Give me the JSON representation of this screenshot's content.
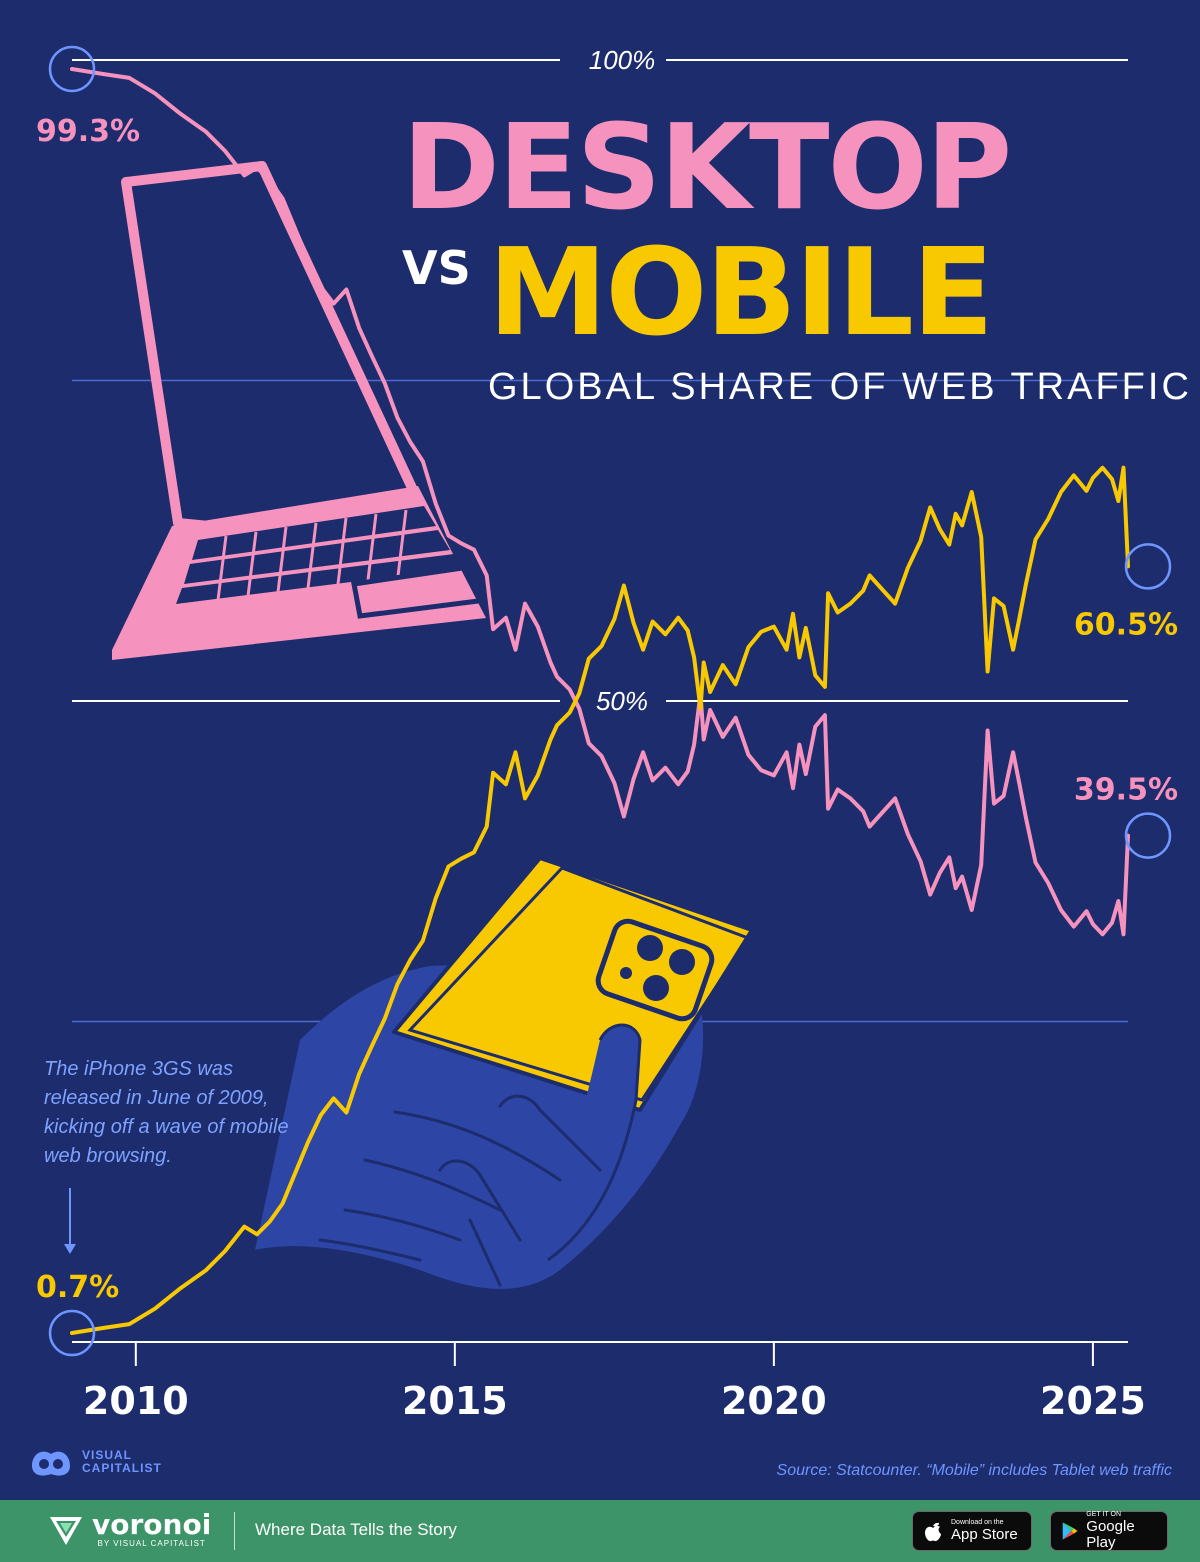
{
  "header": {
    "title_line1": "DESKTOP",
    "title_vs": "VS",
    "title_line2": "MOBILE",
    "subtitle": "GLOBAL SHARE OF WEB TRAFFIC"
  },
  "chart_data": {
    "type": "line",
    "title": "DESKTOP VS MOBILE",
    "subtitle": "GLOBAL SHARE OF WEB TRAFFIC",
    "xlabel": "",
    "ylabel": "",
    "xlim": [
      2009.0,
      2025.55
    ],
    "ylim": [
      0,
      100
    ],
    "x_ticks": [
      "2010",
      "2015",
      "2020",
      "2025"
    ],
    "y_ticks": [
      {
        "value": 100,
        "label": "100%"
      },
      {
        "value": 75,
        "label": ""
      },
      {
        "value": 50,
        "label": "50%"
      },
      {
        "value": 25,
        "label": ""
      },
      {
        "value": 0,
        "label": ""
      }
    ],
    "grid": true,
    "legend": "none",
    "series": [
      {
        "name": "DESKTOP",
        "color": "#f592bd",
        "start_label": "99.3%",
        "end_label": "39.5%",
        "points": [
          [
            2009.0,
            99.3
          ],
          [
            2009.5,
            98.9
          ],
          [
            2009.9,
            98.6
          ],
          [
            2010.3,
            97.4
          ],
          [
            2010.7,
            95.8
          ],
          [
            2011.1,
            94.4
          ],
          [
            2011.4,
            92.9
          ],
          [
            2011.7,
            91.0
          ],
          [
            2011.9,
            91.6
          ],
          [
            2012.1,
            90.6
          ],
          [
            2012.3,
            89.2
          ],
          [
            2012.5,
            86.8
          ],
          [
            2012.7,
            84.4
          ],
          [
            2012.9,
            82.3
          ],
          [
            2013.1,
            81.0
          ],
          [
            2013.3,
            82.1
          ],
          [
            2013.5,
            79.1
          ],
          [
            2013.7,
            76.9
          ],
          [
            2013.9,
            74.8
          ],
          [
            2014.1,
            72.1
          ],
          [
            2014.3,
            70.2
          ],
          [
            2014.5,
            68.7
          ],
          [
            2014.7,
            65.4
          ],
          [
            2014.9,
            62.9
          ],
          [
            2015.1,
            62.3
          ],
          [
            2015.3,
            61.8
          ],
          [
            2015.5,
            59.8
          ],
          [
            2015.6,
            55.6
          ],
          [
            2015.8,
            56.5
          ],
          [
            2015.95,
            54.0
          ],
          [
            2016.1,
            57.6
          ],
          [
            2016.3,
            55.8
          ],
          [
            2016.5,
            53.0
          ],
          [
            2016.6,
            51.9
          ],
          [
            2016.8,
            50.9
          ],
          [
            2016.95,
            49.4
          ],
          [
            2017.1,
            46.7
          ],
          [
            2017.3,
            45.7
          ],
          [
            2017.5,
            43.6
          ],
          [
            2017.65,
            41.0
          ],
          [
            2017.8,
            43.9
          ],
          [
            2017.95,
            46.0
          ],
          [
            2018.1,
            43.8
          ],
          [
            2018.3,
            44.8
          ],
          [
            2018.5,
            43.5
          ],
          [
            2018.65,
            44.5
          ],
          [
            2018.75,
            46.6
          ],
          [
            2018.85,
            50.6
          ],
          [
            2018.9,
            47.0
          ],
          [
            2019.0,
            49.3
          ],
          [
            2019.2,
            47.2
          ],
          [
            2019.4,
            48.7
          ],
          [
            2019.6,
            45.8
          ],
          [
            2019.8,
            44.6
          ],
          [
            2020.0,
            44.2
          ],
          [
            2020.2,
            46.0
          ],
          [
            2020.3,
            43.2
          ],
          [
            2020.4,
            46.6
          ],
          [
            2020.5,
            44.3
          ],
          [
            2020.65,
            48.0
          ],
          [
            2020.8,
            48.9
          ],
          [
            2020.85,
            41.6
          ],
          [
            2021.0,
            43.1
          ],
          [
            2021.2,
            42.4
          ],
          [
            2021.4,
            41.4
          ],
          [
            2021.5,
            40.2
          ],
          [
            2021.7,
            41.3
          ],
          [
            2021.9,
            42.4
          ],
          [
            2022.1,
            39.6
          ],
          [
            2022.3,
            37.5
          ],
          [
            2022.45,
            34.9
          ],
          [
            2022.6,
            36.6
          ],
          [
            2022.75,
            37.8
          ],
          [
            2022.85,
            35.4
          ],
          [
            2022.95,
            36.3
          ],
          [
            2023.1,
            33.7
          ],
          [
            2023.25,
            37.2
          ],
          [
            2023.35,
            47.7
          ],
          [
            2023.45,
            42.0
          ],
          [
            2023.6,
            42.6
          ],
          [
            2023.75,
            46.0
          ],
          [
            2023.85,
            43.5
          ],
          [
            2023.95,
            40.9
          ],
          [
            2024.1,
            37.4
          ],
          [
            2024.3,
            35.8
          ],
          [
            2024.5,
            33.7
          ],
          [
            2024.7,
            32.4
          ],
          [
            2024.9,
            33.6
          ],
          [
            2025.0,
            32.6
          ],
          [
            2025.15,
            31.8
          ],
          [
            2025.3,
            32.7
          ],
          [
            2025.4,
            34.4
          ],
          [
            2025.48,
            31.8
          ],
          [
            2025.55,
            39.5
          ]
        ]
      },
      {
        "name": "MOBILE",
        "color": "#f8c800",
        "start_label": "0.7%",
        "end_label": "60.5%",
        "points": [
          [
            2009.0,
            0.7
          ],
          [
            2009.5,
            1.1
          ],
          [
            2009.9,
            1.4
          ],
          [
            2010.3,
            2.6
          ],
          [
            2010.7,
            4.2
          ],
          [
            2011.1,
            5.6
          ],
          [
            2011.4,
            7.1
          ],
          [
            2011.7,
            9.0
          ],
          [
            2011.9,
            8.4
          ],
          [
            2012.1,
            9.4
          ],
          [
            2012.3,
            10.8
          ],
          [
            2012.5,
            13.2
          ],
          [
            2012.7,
            15.6
          ],
          [
            2012.9,
            17.7
          ],
          [
            2013.1,
            19.0
          ],
          [
            2013.3,
            17.9
          ],
          [
            2013.5,
            20.9
          ],
          [
            2013.7,
            23.1
          ],
          [
            2013.9,
            25.2
          ],
          [
            2014.1,
            27.9
          ],
          [
            2014.3,
            29.8
          ],
          [
            2014.5,
            31.3
          ],
          [
            2014.7,
            34.6
          ],
          [
            2014.9,
            37.1
          ],
          [
            2015.1,
            37.7
          ],
          [
            2015.3,
            38.2
          ],
          [
            2015.5,
            40.2
          ],
          [
            2015.6,
            44.4
          ],
          [
            2015.8,
            43.5
          ],
          [
            2015.95,
            46.0
          ],
          [
            2016.1,
            42.4
          ],
          [
            2016.3,
            44.2
          ],
          [
            2016.5,
            47.0
          ],
          [
            2016.6,
            48.1
          ],
          [
            2016.8,
            49.1
          ],
          [
            2016.95,
            50.6
          ],
          [
            2017.1,
            53.3
          ],
          [
            2017.3,
            54.3
          ],
          [
            2017.5,
            56.4
          ],
          [
            2017.65,
            59.0
          ],
          [
            2017.8,
            56.1
          ],
          [
            2017.95,
            54.0
          ],
          [
            2018.1,
            56.2
          ],
          [
            2018.3,
            55.2
          ],
          [
            2018.5,
            56.5
          ],
          [
            2018.65,
            55.5
          ],
          [
            2018.75,
            53.4
          ],
          [
            2018.85,
            49.4
          ],
          [
            2018.9,
            53.0
          ],
          [
            2019.0,
            50.7
          ],
          [
            2019.2,
            52.8
          ],
          [
            2019.4,
            51.3
          ],
          [
            2019.6,
            54.2
          ],
          [
            2019.8,
            55.4
          ],
          [
            2020.0,
            55.8
          ],
          [
            2020.2,
            54.0
          ],
          [
            2020.3,
            56.8
          ],
          [
            2020.4,
            53.4
          ],
          [
            2020.5,
            55.7
          ],
          [
            2020.65,
            52.0
          ],
          [
            2020.8,
            51.1
          ],
          [
            2020.85,
            58.4
          ],
          [
            2021.0,
            56.9
          ],
          [
            2021.2,
            57.6
          ],
          [
            2021.4,
            58.6
          ],
          [
            2021.5,
            59.8
          ],
          [
            2021.7,
            58.7
          ],
          [
            2021.9,
            57.6
          ],
          [
            2022.1,
            60.4
          ],
          [
            2022.3,
            62.5
          ],
          [
            2022.45,
            65.1
          ],
          [
            2022.6,
            63.4
          ],
          [
            2022.75,
            62.2
          ],
          [
            2022.85,
            64.6
          ],
          [
            2022.95,
            63.7
          ],
          [
            2023.1,
            66.3
          ],
          [
            2023.25,
            62.8
          ],
          [
            2023.35,
            52.3
          ],
          [
            2023.45,
            58.0
          ],
          [
            2023.6,
            57.4
          ],
          [
            2023.75,
            54.0
          ],
          [
            2023.85,
            56.5
          ],
          [
            2023.95,
            59.1
          ],
          [
            2024.1,
            62.6
          ],
          [
            2024.3,
            64.2
          ],
          [
            2024.5,
            66.3
          ],
          [
            2024.7,
            67.6
          ],
          [
            2024.9,
            66.4
          ],
          [
            2025.0,
            67.4
          ],
          [
            2025.15,
            68.2
          ],
          [
            2025.3,
            67.3
          ],
          [
            2025.4,
            65.6
          ],
          [
            2025.48,
            68.2
          ],
          [
            2025.55,
            60.5
          ]
        ]
      }
    ]
  },
  "annotation": {
    "text": "The iPhone 3GS was released in June of 2009, kicking off a wave of mobile web browsing."
  },
  "source": "Source: Statcounter. “Mobile” includes Tablet web traffic",
  "logo": {
    "line1": "VISUAL",
    "line2": "CAPITALIST"
  },
  "footer": {
    "brand": "voronoi",
    "brand_by": "BY VISUAL CAPITALIST",
    "tagline": "Where Data Tells the Story",
    "app_store_small": "Download on the",
    "app_store_big": "App Store",
    "google_play_small": "GET IT ON",
    "google_play_big": "Google Play"
  },
  "colors": {
    "background": "#1c2c6c",
    "desktop": "#f592bd",
    "mobile": "#f8c800",
    "hand": "#2d46a6",
    "accent_blue": "#6f95ff",
    "footer_bg": "#3d9468"
  },
  "icons": [
    "laptop-icon",
    "phone-in-hand-icon",
    "visual-capitalist-logo-icon",
    "voronoi-logo-icon",
    "apple-icon",
    "google-play-icon"
  ]
}
